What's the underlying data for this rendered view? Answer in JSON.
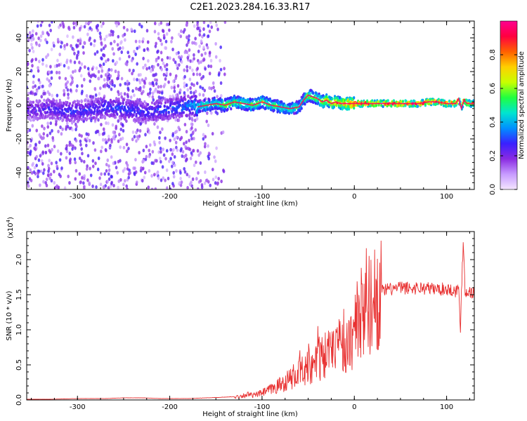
{
  "title": "C2E1.2023.284.16.33.R17",
  "chart_data": [
    {
      "type": "heatmap",
      "title": "C2E1.2023.284.16.33.R17",
      "xlabel": "Height of straight line (km)",
      "ylabel": "Frequency (Hz)",
      "xlim": [
        -355,
        130
      ],
      "ylim": [
        -50,
        50
      ],
      "x_ticks": [
        -300,
        -200,
        -100,
        0,
        100
      ],
      "x_tick_labels": [
        "-300",
        "-200",
        "-100",
        "0",
        "100"
      ],
      "y_ticks": [
        -40,
        -20,
        0,
        20,
        40
      ],
      "y_tick_labels": [
        "-40",
        "-20",
        "0",
        "20",
        "40"
      ],
      "colorbar": {
        "label": "Normalized spectral amplitude",
        "range": [
          0.0,
          1.0
        ],
        "ticks": [
          0.0,
          0.2,
          0.4,
          0.6,
          0.8
        ],
        "tick_labels": [
          "0.0",
          "0.2",
          "0.4",
          "0.6",
          "0.8"
        ],
        "colors": [
          "#f4e6ff",
          "#c79bff",
          "#8a2be2",
          "#3a20ff",
          "#0090ff",
          "#00e5d0",
          "#20ff40",
          "#c8ff00",
          "#ffd000",
          "#ff6000",
          "#ff0040",
          "#ff0090"
        ]
      },
      "ridge": {
        "x": [
          -350,
          -330,
          -310,
          -290,
          -270,
          -250,
          -230,
          -210,
          -190,
          -175,
          -170,
          -160,
          -150,
          -140,
          -130,
          -120,
          -110,
          -100,
          -90,
          -80,
          -70,
          -60,
          -55,
          -50,
          -45,
          -40,
          -35,
          -30,
          -25,
          -20,
          -15,
          -10,
          -5,
          0,
          10,
          20,
          30,
          40,
          50,
          60,
          70,
          80,
          90,
          100,
          105,
          110,
          113,
          116,
          119,
          122,
          125,
          130
        ],
        "freq": [
          -3,
          -2,
          -4,
          -3,
          -1,
          -2,
          -4,
          -3,
          -1,
          0,
          -1,
          0,
          1,
          0,
          2,
          1,
          0,
          2,
          0,
          -1,
          -2,
          -1,
          3,
          6,
          5,
          4,
          2,
          3,
          1,
          2,
          1,
          1,
          1,
          1,
          1,
          1,
          1,
          1,
          1,
          1,
          1,
          2,
          2,
          1,
          1,
          1,
          4,
          -2,
          3,
          1,
          1,
          1
        ],
        "amplitude": [
          0.25,
          0.28,
          0.3,
          0.3,
          0.32,
          0.32,
          0.3,
          0.32,
          0.35,
          0.4,
          0.5,
          0.55,
          0.55,
          0.6,
          0.6,
          0.6,
          0.62,
          0.65,
          0.6,
          0.6,
          0.55,
          0.55,
          0.55,
          0.65,
          0.65,
          0.65,
          0.75,
          0.75,
          0.8,
          0.85,
          0.85,
          0.9,
          0.9,
          0.95,
          0.95,
          0.95,
          0.95,
          0.95,
          0.95,
          0.95,
          0.95,
          0.95,
          0.95,
          0.95,
          0.95,
          0.9,
          0.85,
          0.8,
          0.85,
          0.9,
          0.9,
          0.9
        ]
      }
    },
    {
      "type": "line",
      "xlabel": "Height of straight line (km)",
      "ylabel": "SNR (10 * v/v)",
      "y_multiplier_label": "(x10",
      "y_multiplier_exp": "4",
      "xlim": [
        -355,
        130
      ],
      "ylim": [
        0,
        2.4
      ],
      "x_ticks": [
        -300,
        -200,
        -100,
        0,
        100
      ],
      "x_tick_labels": [
        "-300",
        "-200",
        "-100",
        "0",
        "100"
      ],
      "y_ticks": [
        0,
        0.5,
        1.0,
        1.5,
        2.0
      ],
      "y_tick_labels": [
        "0.0",
        "0.5",
        "1.0",
        "1.5",
        "2.0"
      ],
      "series": [
        {
          "color": "#e83030",
          "x": [
            -355,
            -330,
            -300,
            -270,
            -250,
            -230,
            -210,
            -180,
            -160,
            -140,
            -125,
            -115,
            -110,
            -100,
            -90,
            -80,
            -70,
            -60,
            -50,
            -40,
            -30,
            -25,
            -20,
            -15,
            -10,
            -5,
            0,
            5,
            10,
            15,
            20,
            25,
            30,
            35,
            40,
            50,
            60,
            70,
            80,
            90,
            100,
            105,
            110,
            113,
            115,
            116,
            118,
            120,
            125,
            130
          ],
          "y": [
            0.01,
            0.01,
            0.02,
            0.02,
            0.03,
            0.03,
            0.02,
            0.02,
            0.03,
            0.04,
            0.05,
            0.08,
            0.06,
            0.1,
            0.15,
            0.22,
            0.3,
            0.38,
            0.48,
            0.55,
            0.65,
            0.7,
            0.75,
            0.85,
            0.8,
            0.75,
            1.05,
            1.2,
            1.25,
            1.35,
            1.42,
            1.5,
            1.55,
            1.57,
            1.58,
            1.6,
            1.59,
            1.6,
            1.59,
            1.58,
            1.58,
            1.57,
            1.55,
            1.6,
            0.97,
            1.52,
            2.3,
            1.55,
            1.54,
            1.52
          ]
        }
      ]
    }
  ]
}
